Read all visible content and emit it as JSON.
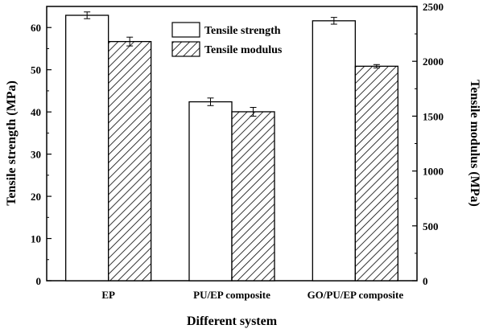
{
  "chart_data": {
    "type": "bar",
    "categories": [
      "EP",
      "PU/EP composite",
      "GO/PU/EP composite"
    ],
    "series": [
      {
        "name": "Tensile strength",
        "axis": "left",
        "values": [
          62.9,
          42.4,
          61.6
        ],
        "errors": [
          0.8,
          0.9,
          0.8
        ],
        "pattern": "open"
      },
      {
        "name": "Tensile modulus",
        "axis": "right",
        "values": [
          2180,
          1540,
          1955
        ],
        "errors": [
          40,
          40,
          15
        ],
        "pattern": "diagonal-hatch"
      }
    ],
    "xlabel": "Different system",
    "ylabel": "Tensile strength (MPa)",
    "y2label": "Tensile modulus (MPa)",
    "ylim": [
      0,
      65
    ],
    "y2lim": [
      0,
      2500
    ],
    "yticks": [
      0,
      10,
      20,
      30,
      40,
      50,
      60
    ],
    "y2ticks": [
      0,
      500,
      1000,
      1500,
      2000,
      2500
    ],
    "legend_position": "top-center",
    "grid": false
  }
}
